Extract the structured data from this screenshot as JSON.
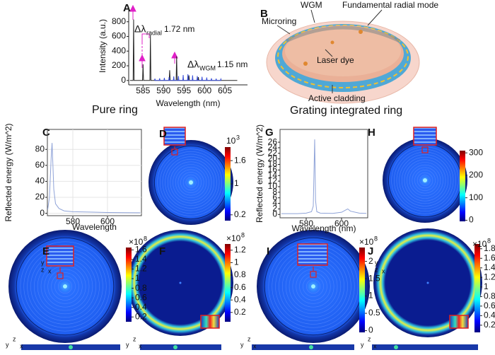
{
  "panel_labels": [
    "A",
    "B",
    "C",
    "D",
    "E",
    "F",
    "G",
    "H",
    "I",
    "J"
  ],
  "captions": [
    "Pure ring",
    "Grating integrated ring"
  ],
  "schematic": {
    "labels": [
      "WGM",
      "Microring",
      "Fundamental radial mode",
      "Laser dye",
      "Active cladding"
    ]
  },
  "triad": {
    "x": "x",
    "y": "y",
    "z": "z"
  },
  "chart_data": [
    {
      "type": "line",
      "x_label": "Wavelength (nm)",
      "y_label": "Intensity (a.u.)",
      "xlim": [
        581.5,
        610.5
      ],
      "xticks": [
        585,
        590,
        595,
        600,
        605
      ],
      "ylim": [
        -60,
        1000
      ],
      "yticks": [
        0,
        200,
        400,
        600,
        800
      ],
      "grid": false,
      "annotations": [
        {
          "text": "Δλ",
          "subscript": "radial",
          "value": "1.72 nm",
          "color": "#e020c8"
        },
        {
          "text": "Δλ",
          "subscript": "WGM",
          "value": "1.15 nm",
          "color": "#3a4fd8"
        }
      ],
      "series": [
        {
          "color": "#222222",
          "x": [
            581.8,
            582.58,
            582.7,
            582.82,
            584.88,
            585,
            585.12,
            586.68,
            586.8,
            586.92,
            591.38,
            591.5,
            591.62,
            593.08,
            593.2,
            593.32,
            596.08,
            596.2,
            596.32,
            598.38,
            598.5,
            598.62,
            608
          ],
          "values": [
            0,
            0,
            830,
            0,
            0,
            220,
            0,
            0,
            620,
            0,
            0,
            140,
            0,
            0,
            330,
            0,
            0,
            70,
            0,
            0,
            45,
            0,
            0
          ]
        },
        {
          "color": "#3a4fd8",
          "x": [
            587.8,
            587.9,
            588.0,
            588.95,
            589.05,
            589.15,
            590.1,
            590.2,
            590.3,
            591.25,
            591.35,
            591.45,
            592.4,
            592.5,
            592.6,
            593.55,
            593.65,
            593.75,
            594.7,
            594.8,
            594.9,
            595.85,
            595.95,
            596.05,
            597.0,
            597.1,
            597.2,
            598.15,
            598.25,
            598.35,
            599.3,
            599.4,
            599.5,
            600.45,
            600.55,
            600.65,
            601.6,
            601.7,
            601.8,
            602.75,
            602.85,
            602.95,
            603.9,
            604.0,
            604.1
          ],
          "values": [
            0,
            25,
            0,
            0,
            30,
            0,
            0,
            35,
            0,
            0,
            45,
            0,
            0,
            55,
            0,
            0,
            60,
            0,
            0,
            75,
            0,
            0,
            85,
            0,
            0,
            70,
            0,
            0,
            60,
            0,
            0,
            50,
            0,
            0,
            40,
            0,
            0,
            30,
            0,
            0,
            25,
            0,
            0,
            20,
            0
          ]
        }
      ]
    },
    {
      "type": "line",
      "x_label": "Wavelength",
      "y_label": "Reflected energy (W/m^2)",
      "xlim": [
        565.3,
        619.6
      ],
      "xticks": [
        580,
        600
      ],
      "ylim": [
        -3,
        105
      ],
      "yticks": [
        0,
        20,
        40,
        60,
        80
      ],
      "grid": true,
      "series": [
        {
          "color": "#8fa3d8",
          "x": [
            565.5,
            566.5,
            567.5,
            568,
            568.5,
            569,
            570,
            572,
            575,
            580,
            590,
            600,
            610,
            619
          ],
          "values": [
            5,
            20,
            70,
            88,
            60,
            30,
            12,
            6,
            3,
            2,
            1.5,
            1,
            0.8,
            0.7
          ]
        }
      ]
    },
    {
      "type": "line",
      "x_label": "Wavelength (nm)",
      "y_label": "Reflected energy (W/m^2)",
      "xlim": [
        565.2,
        614.8
      ],
      "xticks": [
        580,
        600
      ],
      "ylim": [
        -1.2,
        30.6
      ],
      "yticks": [
        0,
        2,
        4,
        6,
        8,
        10,
        12,
        14,
        16,
        18,
        20,
        22,
        24,
        26
      ],
      "grid": false,
      "series": [
        {
          "color": "#8fa3d8",
          "x": [
            566,
            575,
            580,
            583,
            584,
            584.8,
            585.3,
            586,
            588,
            595,
            600,
            602,
            603.5,
            605,
            610,
            614
          ],
          "values": [
            0.3,
            0.3,
            0.5,
            1,
            3,
            27,
            5,
            1,
            0.5,
            0.4,
            0.8,
            1.5,
            2,
            1.2,
            0.5,
            0.4
          ]
        }
      ]
    },
    {
      "type": "colorbar",
      "scale_label": "10",
      "scale_exp": "3",
      "ylim": [
        0.05,
        1.95
      ],
      "yticks": [
        0.2,
        1,
        1.6
      ]
    },
    {
      "type": "colorbar",
      "ylim": [
        -5,
        310
      ],
      "yticks": [
        0,
        100,
        200,
        300
      ]
    },
    {
      "type": "colorbar",
      "scale_label": "×10",
      "scale_exp": "8",
      "ylim": [
        0.1,
        1.65
      ],
      "yticks": [
        0.2,
        0.4,
        0.6,
        0.8,
        1,
        1.2,
        1.4,
        1.6
      ]
    },
    {
      "type": "colorbar",
      "scale_label": "×10",
      "scale_exp": "8",
      "ylim": [
        0.05,
        1.3
      ],
      "yticks": [
        0.2,
        0.4,
        0.6,
        0.8,
        1,
        1.2
      ]
    },
    {
      "type": "colorbar",
      "scale_label": "×10",
      "scale_exp": "8",
      "ylim": [
        -0.05,
        2.4
      ],
      "yticks": [
        0,
        0.5,
        1,
        1.5,
        2
      ]
    },
    {
      "type": "colorbar",
      "scale_label": "×10",
      "scale_exp": "8",
      "ylim": [
        0.05,
        1.9
      ],
      "yticks": [
        0.2,
        0.4,
        0.6,
        0.8,
        1,
        1.2,
        1.4,
        1.6,
        1.8
      ]
    }
  ]
}
